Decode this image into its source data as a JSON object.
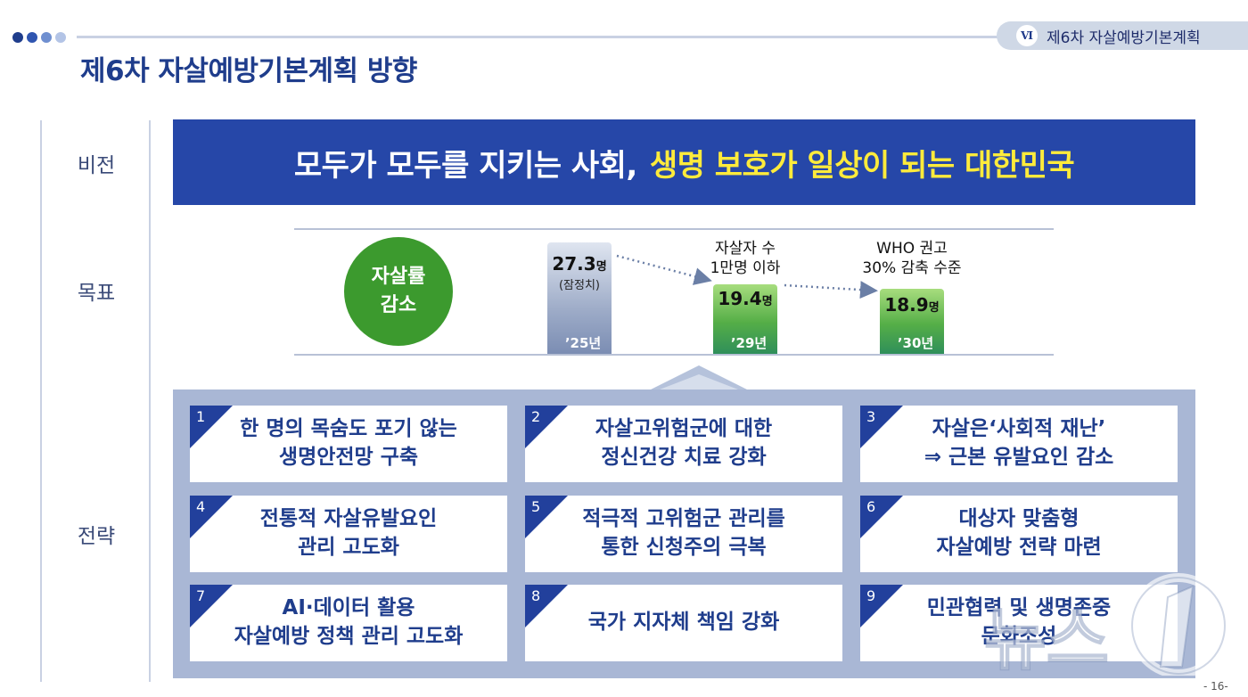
{
  "header": {
    "chapter_numeral": "Ⅵ",
    "chapter_title": "제6차 자살예방기본계획",
    "page_title": "제6차 자살예방기본계획 방향"
  },
  "labels": {
    "vision": "비전",
    "goal": "목표",
    "strategy": "전략"
  },
  "vision": {
    "white_text": "모두가 모두를 지키는 사회,",
    "yellow_text": "생명 보호가 일상이 되는 대한민국"
  },
  "goal": {
    "circle_line1": "자살률",
    "circle_line2": "감소",
    "bars": [
      {
        "year": "’25년",
        "value": "27.3",
        "unit": "명",
        "note": "(잠정치)"
      },
      {
        "year": "’29년",
        "value": "19.4",
        "unit": "명",
        "annotation_line1": "자살자 수",
        "annotation_line2": "1만명 이하"
      },
      {
        "year": "’30년",
        "value": "18.9",
        "unit": "명",
        "annotation_line1": "WHO 권고",
        "annotation_line2": "30% 감축 수준"
      }
    ]
  },
  "strategies": [
    {
      "num": "1",
      "line1": "한 명의 목숨도 포기 않는",
      "line2": "생명안전망 구축"
    },
    {
      "num": "2",
      "line1": "자살고위험군에 대한",
      "line2": "정신건강 치료 강화"
    },
    {
      "num": "3",
      "line1": "자살은‘사회적 재난’",
      "line2": "⇒ 근본 유발요인 감소"
    },
    {
      "num": "4",
      "line1": "전통적 자살유발요인",
      "line2": "관리 고도화"
    },
    {
      "num": "5",
      "line1": "적극적 고위험군 관리를",
      "line2": "통한 신청주의 극복"
    },
    {
      "num": "6",
      "line1": "대상자 맞춤형",
      "line2": "자살예방 전략 마련"
    },
    {
      "num": "7",
      "line1": "AI·데이터 활용",
      "line2": "자살예방 정책 관리 고도화"
    },
    {
      "num": "8",
      "line1": "국가 지자체 책임 강화",
      "line2": ""
    },
    {
      "num": "9",
      "line1": "민관협력 및 생명존중",
      "line2": "문화조성"
    }
  ],
  "page_number": "- 16-",
  "watermark": "뉴스1",
  "colors": {
    "title_blue": "#1f3d8c",
    "vision_bg": "#2647a8",
    "vision_highlight": "#ffeb3b",
    "goal_green": "#3c9a2e",
    "panel_bg": "#a9b7d5",
    "card_corner": "#22409c"
  }
}
